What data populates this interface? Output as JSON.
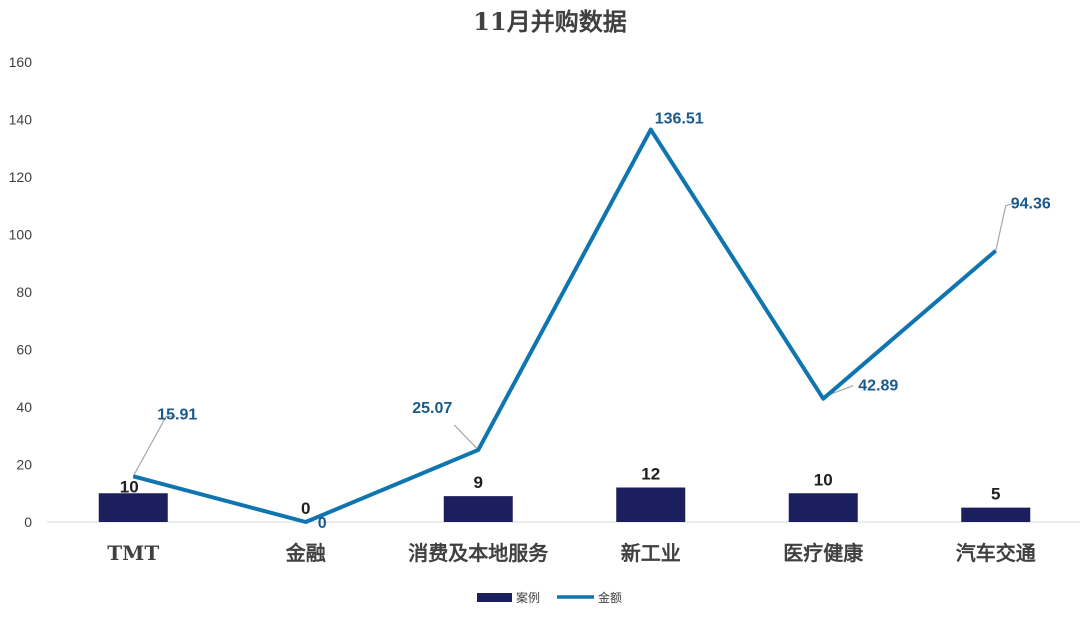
{
  "chart_data": {
    "type": "bar+line",
    "title": "11月并购数据",
    "categories": [
      "TMT",
      "金融",
      "消费及本地服务",
      "新工业",
      "医疗健康",
      "汽车交通"
    ],
    "series": [
      {
        "name": "案例",
        "type": "bar",
        "color": "#1c1f5e",
        "values": [
          10,
          0,
          9,
          12,
          10,
          5
        ],
        "labels": [
          "10",
          "0",
          "9",
          "12",
          "10",
          "5"
        ]
      },
      {
        "name": "金额",
        "type": "line",
        "color": "#0e75b0",
        "values": [
          15.91,
          0,
          25.07,
          136.51,
          42.89,
          94.36
        ],
        "labels": [
          "15.91",
          "0",
          "25.07",
          "136.51",
          "42.89",
          "94.36"
        ]
      }
    ],
    "ylim": [
      0,
      160
    ],
    "yticks": [
      "0",
      "20",
      "40",
      "60",
      "80",
      "100",
      "120",
      "140",
      "160"
    ],
    "grid": false,
    "legend": "bottom"
  }
}
